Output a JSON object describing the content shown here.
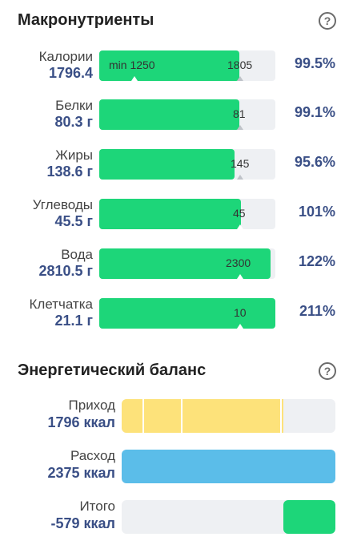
{
  "macros": {
    "title": "Макронутриенты",
    "help": "?",
    "items": [
      {
        "name": "Калории",
        "value": "1796.4",
        "min_label": "min 1250",
        "target_label": "1805",
        "percent": "99.5%",
        "fill_fraction": 0.995
      },
      {
        "name": "Белки",
        "value": "80.3 г",
        "target_label": "81",
        "percent": "99.1%",
        "fill_fraction": 0.991
      },
      {
        "name": "Жиры",
        "value": "138.6 г",
        "target_label": "145",
        "percent": "95.6%",
        "fill_fraction": 0.956
      },
      {
        "name": "Углеводы",
        "value": "45.5 г",
        "target_label": "45",
        "percent": "101%",
        "fill_fraction": 1.01
      },
      {
        "name": "Вода",
        "value": "2810.5 г",
        "target_label": "2300",
        "percent": "122%",
        "fill_fraction": 1.22
      },
      {
        "name": "Клетчатка",
        "value": "21.1 г",
        "target_label": "10",
        "percent": "211%",
        "fill_fraction": 2.11
      }
    ]
  },
  "energy": {
    "title": "Энергетический баланс",
    "help": "?",
    "items": [
      {
        "name": "Приход",
        "value": "1796 ккал"
      },
      {
        "name": "Расход",
        "value": "2375 ккал"
      },
      {
        "name": "Итого",
        "value": "-579 ккал"
      }
    ],
    "colors": {
      "intake": "#fde27a",
      "expense": "#5bbde9",
      "total": "#1dd679"
    }
  }
}
